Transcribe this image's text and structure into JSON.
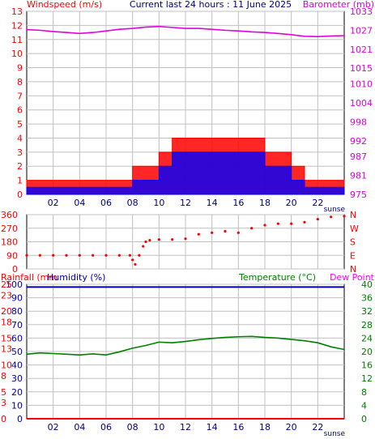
{
  "header": {
    "left_title": "Windspeed (m/s)",
    "center_title": "Current last 24 hours : 11 June 2025",
    "right_title": "Barometer (mb)"
  },
  "colors": {
    "windspeed": "#ff0000",
    "gust_fill": "#ff0000",
    "average_wind": "#0000ff",
    "barometer": "#e000e0",
    "direction": "#ff0000",
    "humidity": "#0000aa",
    "temperature": "#008000",
    "rainfall": "#ff0000",
    "dewpoint": "#ff00ff",
    "grid": "#c0c0c0"
  },
  "chart_data": [
    {
      "type": "line",
      "title": "Current last 24 hours : 11 June 2025",
      "ylabel": "Windspeed (m/s)",
      "ylabel_right": "Barometer (mb)",
      "x_tick_labels": [
        "02",
        "04",
        "06",
        "08",
        "10",
        "12",
        "14",
        "16",
        "18",
        "20",
        "22"
      ],
      "x_end_label": "sunse",
      "ylim": [
        0,
        13
      ],
      "y_ticks": [
        0,
        1,
        2,
        3,
        4,
        5,
        6,
        7,
        8,
        9,
        10,
        11,
        12,
        13
      ],
      "y2lim": [
        975,
        1033
      ],
      "y2_ticks": [
        975,
        981,
        987,
        992,
        998,
        1004,
        1010,
        1015,
        1021,
        1027,
        1033
      ],
      "grid": true,
      "hours": [
        0,
        1,
        2,
        3,
        4,
        5,
        6,
        7,
        8,
        9,
        10,
        11,
        12,
        13,
        14,
        15,
        16,
        17,
        18,
        19,
        20,
        21,
        22,
        23,
        24
      ],
      "series": [
        {
          "name": "Windspeed (m/s)",
          "values": [
            1,
            1,
            1,
            1,
            1,
            1,
            1,
            1,
            2,
            2,
            3,
            4,
            4,
            4,
            4,
            4,
            4,
            4,
            3,
            3,
            2,
            1,
            1,
            1,
            1
          ]
        },
        {
          "values": [
            0.5,
            0.5,
            0.5,
            0.5,
            0.5,
            0.5,
            0.5,
            0.5,
            1,
            1,
            2,
            3,
            3,
            3,
            3,
            3,
            3,
            3,
            2,
            2,
            1,
            0.5,
            0.5,
            0.5,
            0.5
          ]
        },
        {
          "name": "Barometer (mb)",
          "values": [
            1027.2,
            1027.0,
            1026.6,
            1026.3,
            1026.0,
            1026.3,
            1026.8,
            1027.3,
            1027.6,
            1028.0,
            1028.2,
            1027.9,
            1027.6,
            1027.6,
            1027.3,
            1027.0,
            1026.8,
            1026.5,
            1026.3,
            1026.0,
            1025.6,
            1025.1,
            1025.0,
            1025.2,
            1025.3
          ]
        }
      ]
    },
    {
      "type": "scatter",
      "y_ticks": [
        0,
        90,
        180,
        270,
        360
      ],
      "y_tick_labels": [
        "0",
        "90",
        "180",
        "270",
        "360"
      ],
      "y_right_labels": [
        "N",
        "E",
        "S",
        "W",
        "N"
      ],
      "ylim": [
        0,
        360
      ],
      "series": [
        {
          "points": [
            [
              0,
              90
            ],
            [
              1,
              90
            ],
            [
              2,
              90
            ],
            [
              3,
              90
            ],
            [
              4,
              90
            ],
            [
              5,
              90
            ],
            [
              6,
              90
            ],
            [
              7,
              90
            ],
            [
              7.8,
              90
            ],
            [
              8.0,
              60
            ],
            [
              8.2,
              30
            ],
            [
              8.5,
              90
            ],
            [
              8.8,
              150
            ],
            [
              9.0,
              180
            ],
            [
              9.3,
              190
            ],
            [
              10,
              195
            ],
            [
              11,
              195
            ],
            [
              12,
              200
            ],
            [
              13,
              230
            ],
            [
              14,
              240
            ],
            [
              15,
              250
            ],
            [
              16,
              240
            ],
            [
              17,
              270
            ],
            [
              18,
              290
            ],
            [
              19,
              300
            ],
            [
              20,
              300
            ],
            [
              21,
              310
            ],
            [
              22,
              330
            ],
            [
              23,
              345
            ],
            [
              24,
              350
            ]
          ]
        }
      ]
    },
    {
      "type": "line",
      "left_axis_labels": [
        "Rainfall (mm",
        "Humidity (%)"
      ],
      "right_axis_labels": [
        "Temperature (°C)",
        "Dew Point"
      ],
      "x_tick_labels": [
        "02",
        "04",
        "06",
        "08",
        "10",
        "12",
        "14",
        "16",
        "18",
        "20",
        "22"
      ],
      "x_end_label": "sunse",
      "humidity_ticks": [
        0,
        10,
        20,
        30,
        40,
        50,
        60,
        70,
        80,
        90,
        100
      ],
      "rainfall_ticks": [
        0,
        3,
        5,
        8,
        10,
        13,
        15,
        18,
        20,
        23,
        25
      ],
      "temperature_ticks": [
        0,
        4,
        8,
        12,
        16,
        20,
        24,
        28,
        32,
        36,
        40
      ],
      "ylim_humidity": [
        0,
        100
      ],
      "ylim_rainfall": [
        0,
        25
      ],
      "ylim_temperature": [
        0,
        40
      ],
      "grid": true,
      "hours": [
        0,
        1,
        2,
        3,
        4,
        5,
        6,
        7,
        8,
        9,
        10,
        11,
        12,
        13,
        14,
        15,
        16,
        17,
        18,
        19,
        20,
        21,
        22,
        23,
        24
      ],
      "series": [
        {
          "name": "Humidity (%)",
          "values": [
            98,
            98,
            98,
            98,
            98,
            98,
            98,
            98,
            98,
            98,
            98,
            98,
            98,
            98,
            98,
            98,
            98,
            98,
            98,
            98,
            98,
            98,
            98,
            98,
            98
          ]
        },
        {
          "name": "Temperature (°C)",
          "values": [
            19.2,
            19.6,
            19.4,
            19.2,
            19.0,
            19.3,
            19.0,
            19.9,
            21.0,
            21.8,
            22.8,
            22.6,
            23.0,
            23.5,
            23.9,
            24.2,
            24.4,
            24.5,
            24.2,
            24.0,
            23.6,
            23.2,
            22.6,
            21.4,
            20.6
          ]
        },
        {
          "name": "Rainfall (mm",
          "values": [
            0,
            0,
            0,
            0,
            0,
            0,
            0,
            0,
            0,
            0,
            0,
            0,
            0,
            0,
            0,
            0,
            0,
            0,
            0,
            0,
            0,
            0,
            0,
            0,
            0
          ]
        }
      ]
    }
  ]
}
